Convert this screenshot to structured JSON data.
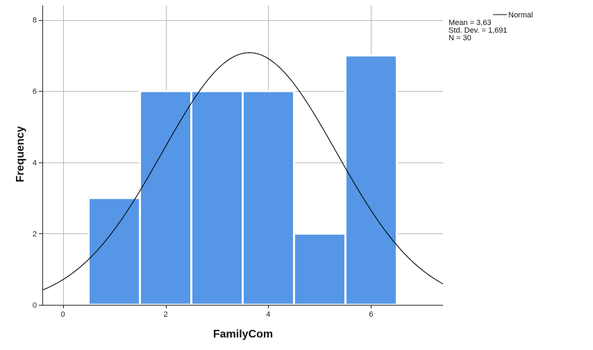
{
  "chart_data": {
    "type": "bar",
    "subtype": "histogram",
    "xlabel": "FamilyCom",
    "ylabel": "Frequency",
    "xlim": [
      -0.4,
      7.4
    ],
    "ylim": [
      0,
      8.4
    ],
    "x_ticks": [
      0,
      2,
      4,
      6
    ],
    "y_ticks": [
      0,
      2,
      4,
      6,
      8
    ],
    "grid": true,
    "bins": [
      {
        "center": 1,
        "width": 1,
        "value": 3
      },
      {
        "center": 2,
        "width": 1,
        "value": 6
      },
      {
        "center": 3,
        "width": 1,
        "value": 6
      },
      {
        "center": 4,
        "width": 1,
        "value": 6
      },
      {
        "center": 5,
        "width": 1,
        "value": 2
      },
      {
        "center": 6,
        "width": 1,
        "value": 7
      }
    ],
    "normal_curve": {
      "name": "Normal",
      "mean": 3.63,
      "std_dev": 1.691,
      "n": 30,
      "bin_width": 1
    },
    "legend": {
      "placement": "top-right",
      "series_label": "Normal",
      "stats": [
        "Mean = 3,63",
        "Std. Dev. = 1,691",
        "N = 30"
      ]
    },
    "colors": {
      "bar": "#5596e6",
      "bar_edge": "#ffffff",
      "curve": "#000000",
      "grid": "#b8b8b8",
      "axis": "#222222"
    }
  }
}
